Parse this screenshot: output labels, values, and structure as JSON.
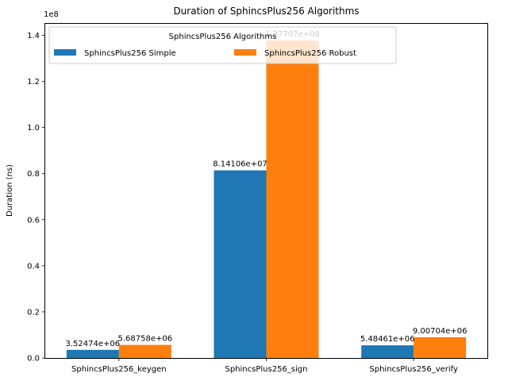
{
  "chart_data": {
    "type": "bar",
    "title": "Duration of SphincsPlus256 Algorithms",
    "xlabel": "",
    "ylabel": "Duration (ns)",
    "y_offset_text": "1e8",
    "categories": [
      "SphincsPlus256_keygen",
      "SphincsPlus256_sign",
      "SphincsPlus256_verify"
    ],
    "series": [
      {
        "name": "SphincsPlus256 Simple",
        "color": "#1f77b4",
        "values": [
          3524740,
          81410600,
          5484610
        ],
        "labels": [
          "3.52474e+06",
          "8.14106e+07",
          "5.48461e+06"
        ]
      },
      {
        "name": "SphincsPlus256 Robust",
        "color": "#ff7f0e",
        "values": [
          5687580,
          137707000,
          9007040
        ],
        "labels": [
          "5.68758e+06",
          "1.37707e+08",
          "9.00704e+06"
        ]
      }
    ],
    "ylim": [
      0,
      145000000
    ],
    "yticks": [
      0,
      20000000,
      40000000,
      60000000,
      80000000,
      100000000,
      120000000,
      140000000
    ],
    "ytick_labels": [
      "0.0",
      "0.2",
      "0.4",
      "0.6",
      "0.8",
      "1.0",
      "1.2",
      "1.4"
    ],
    "legend": {
      "title": "SphincsPlus256 Algorithms",
      "placement": "top-left",
      "columns": 2
    },
    "grid": false
  }
}
